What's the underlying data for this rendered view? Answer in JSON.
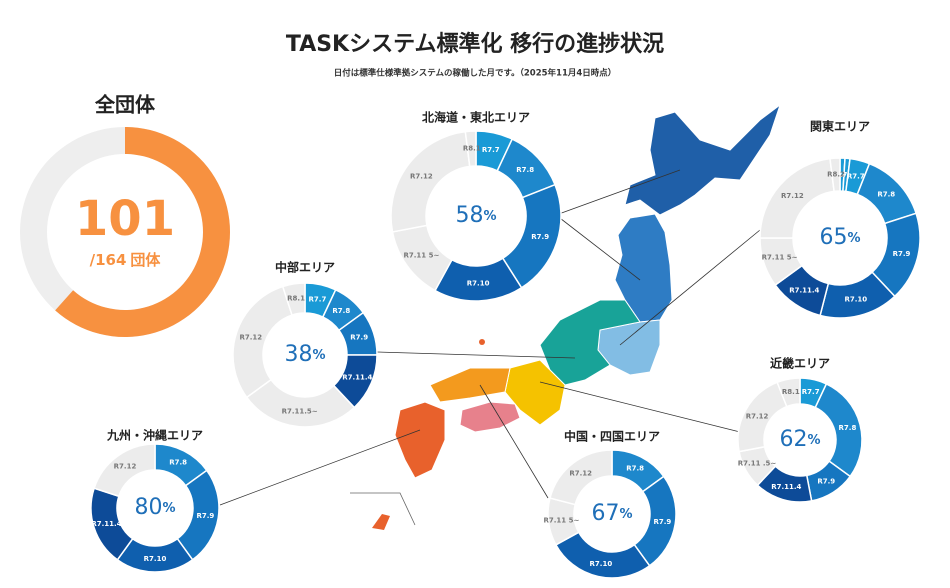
{
  "header": {
    "title": "TASKシステム標準化 移行の進捗状況",
    "subtitle": "日付は標準仕様準拠システムの稼働した月です。（2025年11月4日時点）"
  },
  "chart_data": [
    {
      "type": "progress_ring",
      "title": "全団体",
      "value": 101,
      "total": 164,
      "total_prefix": "/",
      "unit": "団体",
      "color": "#f79140",
      "track_color": "#eeeeee"
    },
    {
      "type": "donut",
      "title": "北海道・東北エリア",
      "center_value": 58,
      "center_unit": "%",
      "categories": [
        "R7.7",
        "R7.8",
        "R7.9",
        "R7.10",
        "R7.11 5~",
        "R7.12",
        "R8.1"
      ],
      "values": [
        7,
        12,
        22,
        17,
        14,
        26,
        2
      ],
      "colors": [
        "#1a9ad6",
        "#1e88cc",
        "#1676c0",
        "#0f5fae",
        "#ececec",
        "#ececec",
        "#ececec"
      ]
    },
    {
      "type": "donut",
      "title": "関東エリア",
      "center_value": 65,
      "center_unit": "%",
      "categories": [
        "R6.12",
        "R7.1",
        "R7.7",
        "R7.8",
        "R7.9",
        "R7.10",
        "R7.11.4",
        "R7.11 5~",
        "R7.12",
        "R8.2"
      ],
      "values": [
        1,
        1,
        4,
        14,
        18,
        16,
        11,
        10,
        23,
        2
      ],
      "colors": [
        "#1a9ad6",
        "#1a9ad6",
        "#1a9ad6",
        "#1e88cc",
        "#1676c0",
        "#0f5fae",
        "#0d4b98",
        "#ececec",
        "#ececec",
        "#ececec"
      ]
    },
    {
      "type": "donut",
      "title": "中部エリア",
      "center_value": 38,
      "center_unit": "%",
      "categories": [
        "R7.7",
        "R7.8",
        "R7.9",
        "R7.11.4",
        "R7.11.5~",
        "R7.12",
        "R8.1"
      ],
      "values": [
        7,
        8,
        10,
        13,
        27,
        30,
        5
      ],
      "colors": [
        "#1a9ad6",
        "#1e88cc",
        "#1676c0",
        "#0d4b98",
        "#ececec",
        "#ececec",
        "#ececec"
      ]
    },
    {
      "type": "donut",
      "title": "近畿エリア",
      "center_value": 62,
      "center_unit": "%",
      "categories": [
        "R7.7",
        "R7.8",
        "R7.9",
        "R7.11.4",
        "R7.11 .5~",
        "R7.12",
        "R8.1"
      ],
      "values": [
        7,
        28,
        12,
        15,
        10,
        22,
        6
      ],
      "colors": [
        "#1a9ad6",
        "#1e88cc",
        "#1676c0",
        "#0d4b98",
        "#ececec",
        "#ececec",
        "#ececec"
      ]
    },
    {
      "type": "donut",
      "title": "中国・四国エリア",
      "center_value": 67,
      "center_unit": "%",
      "categories": [
        "R7.8",
        "R7.9",
        "R7.10",
        "R7.11 5~",
        "R7.12"
      ],
      "values": [
        15,
        25,
        27,
        12,
        21
      ],
      "colors": [
        "#1e88cc",
        "#1676c0",
        "#0f5fae",
        "#ececec",
        "#ececec"
      ]
    },
    {
      "type": "donut",
      "title": "九州・沖縄エリア",
      "center_value": 80,
      "center_unit": "%",
      "categories": [
        "R7.8",
        "R7.9",
        "R7.10",
        "R7.11.4",
        "R7.12"
      ],
      "values": [
        15,
        25,
        20,
        20,
        20
      ],
      "colors": [
        "#1e88cc",
        "#1676c0",
        "#0f5fae",
        "#0d4b98",
        "#ececec"
      ]
    }
  ]
}
